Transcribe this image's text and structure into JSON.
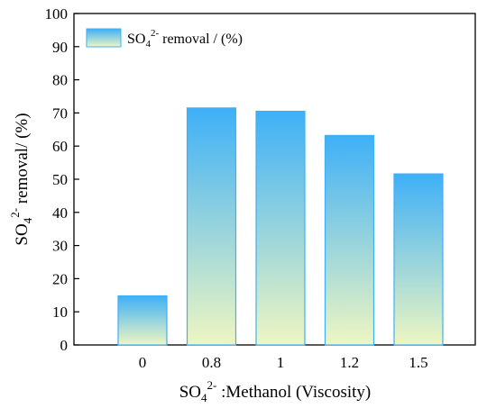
{
  "chart_data": {
    "type": "bar",
    "categories": [
      "0",
      "0.8",
      "1",
      "1.2",
      "1.5"
    ],
    "series": [
      {
        "name": "SO42- removal / (%)",
        "values": [
          14.8,
          71.5,
          70.5,
          63.2,
          51.6
        ]
      }
    ],
    "ylim": [
      0,
      100
    ],
    "yticks": [
      0,
      10,
      20,
      30,
      40,
      50,
      60,
      70,
      80,
      90,
      100
    ],
    "ylabel": "SO42- removal/ (%)",
    "xlabel": "SO42- :Methanol (Viscosity)",
    "legend_position": "top-left",
    "grid": false,
    "colors": {
      "bar_top": "#3eb0f7",
      "bar_bottom": "#eef6c2",
      "bar_edge": "#3eb0f7",
      "axis": "#000000"
    }
  },
  "labels": {
    "legend": {
      "base": "SO",
      "sub": "4",
      "sup": "2-",
      "tail": " removal / (%)"
    },
    "ylabel": {
      "base": "SO",
      "sub": "4",
      "sup": "2-",
      "tail": " removal/ (%)"
    },
    "xlabel": {
      "base": "SO",
      "sub": "4",
      "sup": "2-",
      "tail": " :Methanol (Viscosity)"
    }
  }
}
